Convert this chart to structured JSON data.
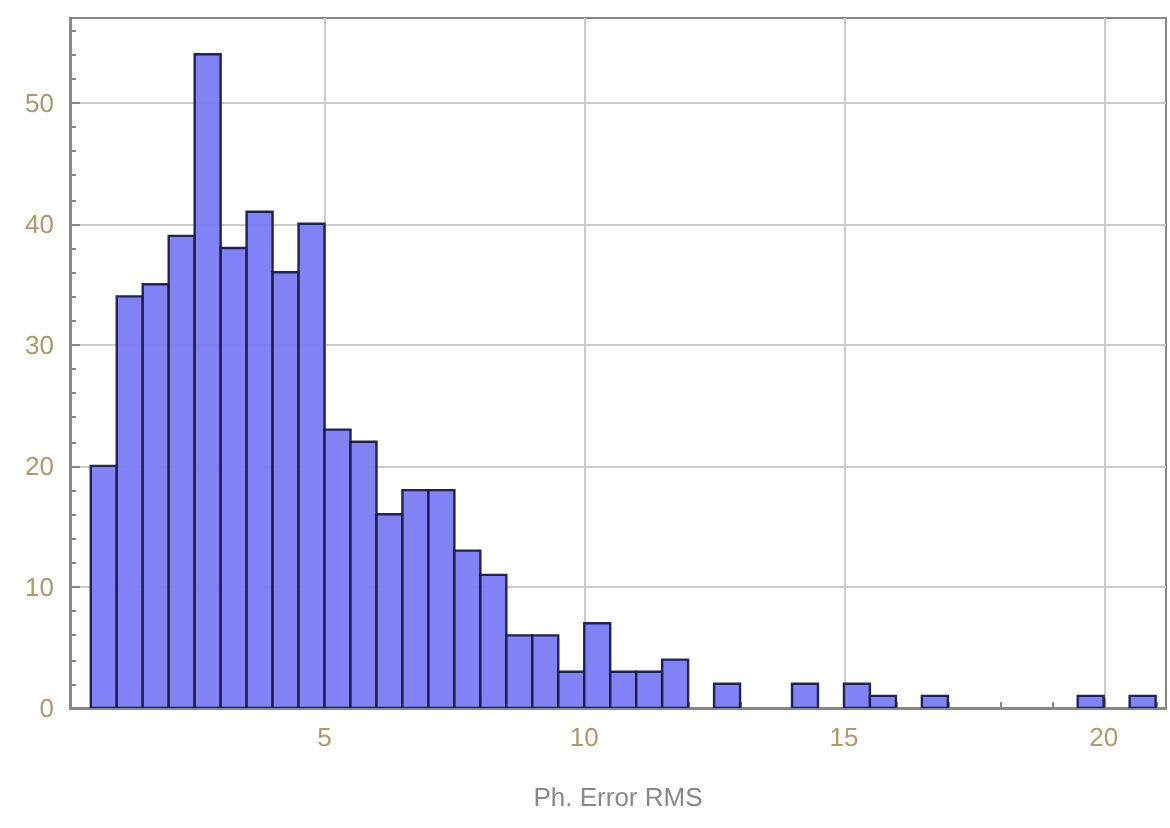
{
  "chart_data": {
    "type": "histogram",
    "xlabel": "Ph. Error RMS",
    "bins": [
      0.5,
      1,
      1.5,
      2,
      2.5,
      3,
      3.5,
      4,
      4.5,
      5,
      5.5,
      6,
      6.5,
      7,
      7.5,
      8,
      8.5,
      9,
      9.5,
      10,
      10.5,
      11,
      11.5,
      12,
      12.5,
      13,
      13.5,
      14,
      14.5,
      15,
      15.5,
      16,
      16.5,
      17,
      17.5,
      18,
      18.5,
      19,
      19.5,
      20,
      20.5,
      21
    ],
    "values": [
      20,
      34,
      35,
      39,
      54,
      38,
      41,
      36,
      40,
      23,
      22,
      16,
      18,
      18,
      13,
      11,
      6,
      6,
      3,
      7,
      3,
      3,
      4,
      0,
      2,
      0,
      0,
      2,
      0,
      2,
      1,
      0,
      1,
      0,
      0,
      0,
      0,
      0,
      1,
      0,
      1
    ],
    "color": "#7b7bf7",
    "xlim": [
      0.1,
      21.2
    ],
    "ylim": [
      0,
      57
    ],
    "xticks": [
      5,
      10,
      15,
      20
    ],
    "yticks": [
      0,
      10,
      20,
      30,
      40,
      50
    ],
    "grid": true
  }
}
